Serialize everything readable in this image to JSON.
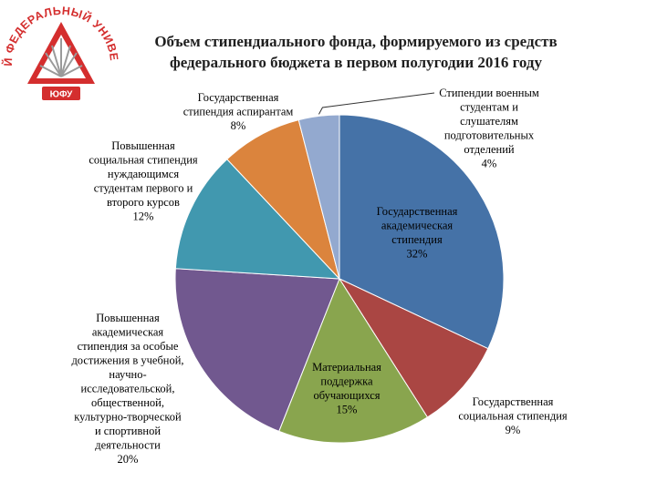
{
  "logo": {
    "arc_text": "ЮЖНЫЙ ФЕДЕРАЛЬНЫЙ УНИВЕРСИТЕТ",
    "badge_text": "ЮФУ",
    "colors": {
      "red": "#d42e2e",
      "gray": "#9a9a9a"
    }
  },
  "chart_data": {
    "type": "pie",
    "title": "Объем стипендиального фонда, формируемого из средств федерального бюджета в первом полугодии 2016 году",
    "start_angle_deg": 0,
    "direction": "clockwise",
    "slices": [
      {
        "label": "Государственная академическая стипендия",
        "value": 32,
        "pct_label": "32%",
        "color": "#4572a7"
      },
      {
        "label": "Государственная социальная стипендия",
        "value": 9,
        "pct_label": "9%",
        "color": "#aa4643"
      },
      {
        "label": "Материальная поддержка обучающихся",
        "value": 15,
        "pct_label": "15%",
        "color": "#89a54e"
      },
      {
        "label": "Повышенная академическая стипендия за особые достижения в учебной, научно-исследовательской, общественной, культурно-творческой и спортивной деятельности",
        "value": 20,
        "pct_label": "20%",
        "color": "#71588f"
      },
      {
        "label": "Повышенная социальная стипендия нуждающимся студентам первого и второго курсов",
        "value": 12,
        "pct_label": "12%",
        "color": "#4198af"
      },
      {
        "label": "Государственная стипендия аспирантам",
        "value": 8,
        "pct_label": "8%",
        "color": "#db843d"
      },
      {
        "label": "Стипендии военным студентам и слушателям подготовительных отделений",
        "value": 4,
        "pct_label": "4%",
        "color": "#93a9cf"
      }
    ],
    "label_lines": [
      [
        "Государственная",
        "академическая",
        "стипендия",
        "32%"
      ],
      [
        "Государственная",
        "социальная стипендия",
        "9%"
      ],
      [
        "Материальная",
        "поддержка",
        "обучающихся",
        "15%"
      ],
      [
        "Повышенная",
        "академическая",
        "стипендия за особые",
        "достижения в учебной,",
        "научно-",
        "исследовательской,",
        "общественной,",
        "культурно-творческой",
        "и спортивной",
        "деятельности",
        "20%"
      ],
      [
        "Повышенная",
        "социальная стипендия",
        "нуждающимся",
        "студентам первого и",
        "второго курсов",
        "12%"
      ],
      [
        "Государственная",
        "стипендия аспирантам",
        "8%"
      ],
      [
        "Стипендии военным",
        "студентам и",
        "слушателям",
        "подготовительных",
        "отделений",
        "4%"
      ]
    ]
  }
}
